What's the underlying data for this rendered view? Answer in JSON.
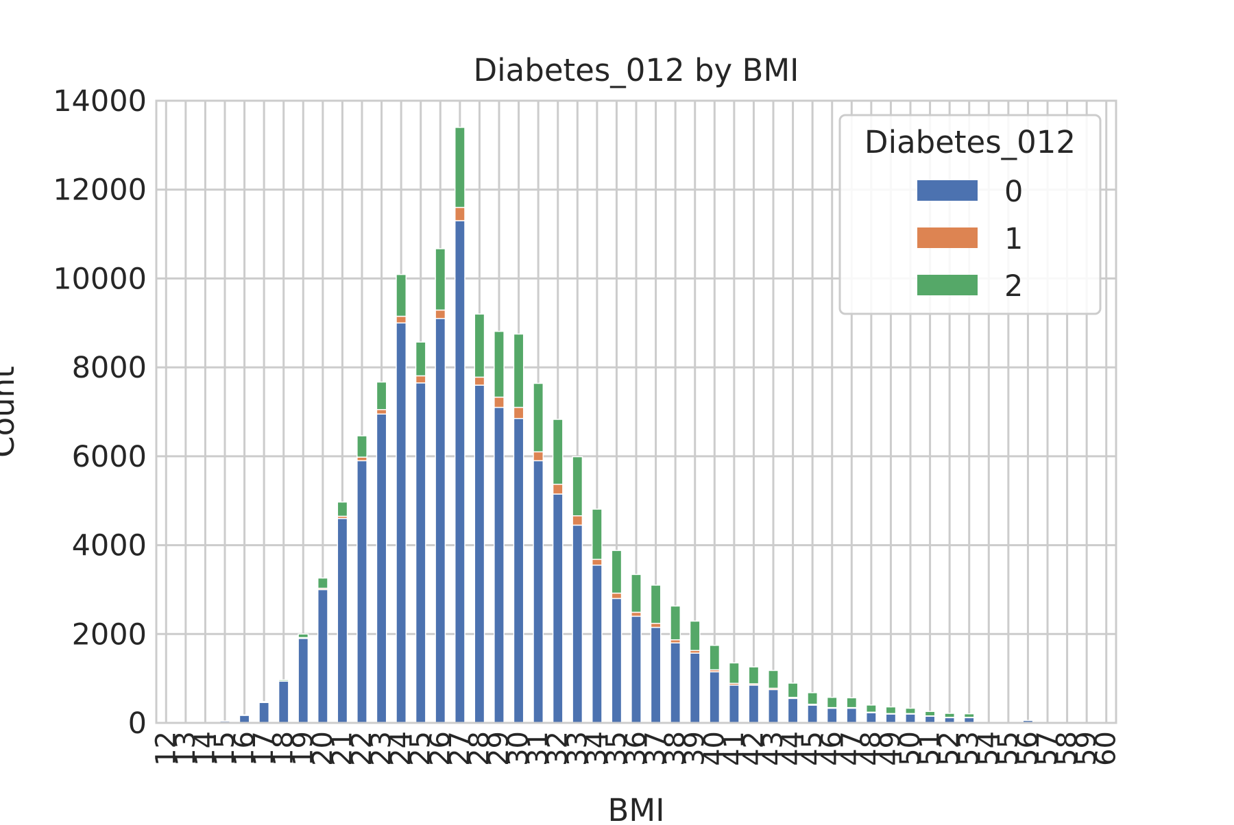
{
  "chart_data": {
    "type": "bar",
    "stacked": true,
    "title": "Diabetes_012 by BMI",
    "xlabel": "BMI",
    "ylabel": "Count",
    "ylim": [
      0,
      14000
    ],
    "yticks": [
      0,
      2000,
      4000,
      6000,
      8000,
      10000,
      12000,
      14000
    ],
    "grid": true,
    "legend": {
      "title": "Diabetes_012",
      "placement": "top-right"
    },
    "categories": [
      "12",
      "13",
      "14",
      "15",
      "16",
      "17",
      "18",
      "19",
      "20",
      "21",
      "22",
      "23",
      "24",
      "25",
      "26",
      "27",
      "28",
      "29",
      "30",
      "31",
      "32",
      "33",
      "34",
      "35",
      "36",
      "37",
      "38",
      "39",
      "40",
      "41",
      "42",
      "43",
      "44",
      "45",
      "46",
      "47",
      "48",
      "49",
      "50",
      "51",
      "52",
      "53",
      "54",
      "55",
      "56",
      "57",
      "58",
      "59",
      "60"
    ],
    "series": [
      {
        "name": "0",
        "color": "#4c72b0",
        "values": [
          0,
          0,
          0,
          40,
          170,
          460,
          940,
          1900,
          3000,
          4600,
          5900,
          6950,
          9000,
          7650,
          9100,
          11300,
          7600,
          7100,
          6850,
          5900,
          5150,
          4450,
          3550,
          2800,
          2400,
          2150,
          1800,
          1570,
          1150,
          850,
          850,
          750,
          550,
          400,
          330,
          330,
          230,
          200,
          200,
          150,
          120,
          120,
          0,
          0,
          55,
          0,
          0,
          0,
          0
        ]
      },
      {
        "name": "1",
        "color": "#dd8452",
        "values": [
          0,
          0,
          0,
          0,
          0,
          0,
          0,
          20,
          30,
          50,
          80,
          100,
          150,
          160,
          190,
          300,
          180,
          230,
          250,
          200,
          220,
          210,
          130,
          120,
          90,
          90,
          70,
          60,
          45,
          40,
          30,
          30,
          25,
          20,
          15,
          15,
          12,
          10,
          10,
          8,
          5,
          5,
          0,
          0,
          0,
          0,
          0,
          0,
          0
        ]
      },
      {
        "name": "2",
        "color": "#55a868",
        "values": [
          0,
          0,
          0,
          0,
          10,
          20,
          30,
          80,
          230,
          320,
          480,
          620,
          940,
          760,
          1380,
          1800,
          1420,
          1480,
          1650,
          1540,
          1460,
          1330,
          1130,
          960,
          850,
          860,
          760,
          660,
          550,
          460,
          380,
          400,
          320,
          260,
          230,
          220,
          160,
          150,
          120,
          100,
          90,
          80,
          0,
          0,
          0,
          0,
          0,
          0,
          0
        ]
      }
    ]
  }
}
